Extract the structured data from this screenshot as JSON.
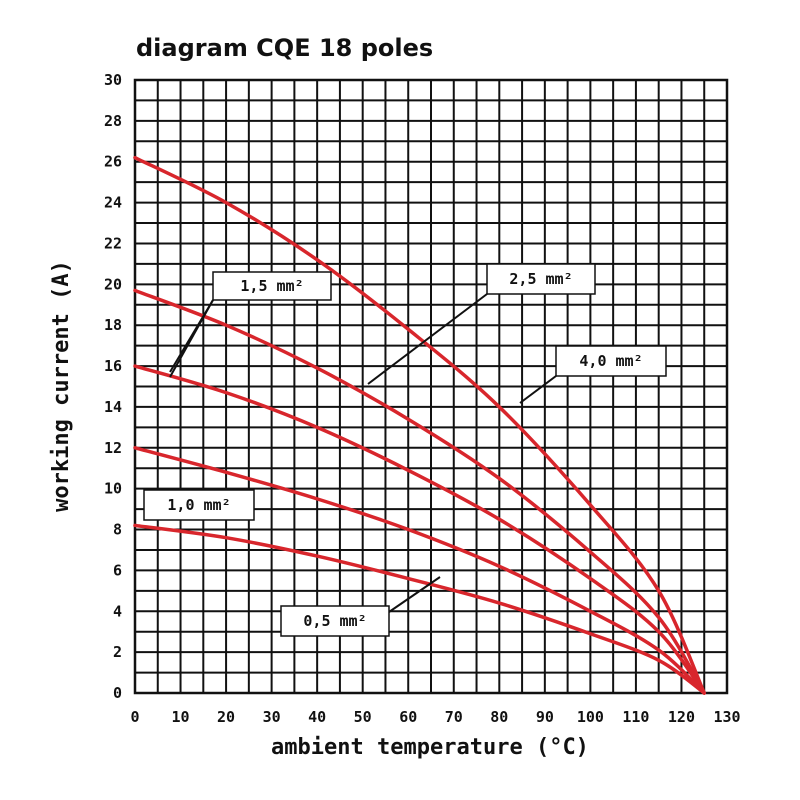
{
  "chart_data": {
    "type": "line",
    "title": "diagram CQE 18 poles",
    "xlabel": "ambient temperature (°C)",
    "ylabel": "working current (A)",
    "xlim": [
      0,
      130
    ],
    "ylim": [
      0,
      30
    ],
    "x_ticks": [
      0,
      10,
      20,
      30,
      40,
      50,
      60,
      70,
      80,
      90,
      100,
      110,
      120,
      130
    ],
    "y_ticks": [
      0,
      2,
      4,
      6,
      8,
      10,
      12,
      14,
      16,
      18,
      20,
      22,
      24,
      26,
      28,
      30
    ],
    "grid": true,
    "line_color": "#d8262c",
    "series": [
      {
        "name": "0,5 mm²",
        "x": [
          0,
          20,
          40,
          60,
          80,
          100,
          115,
          125
        ],
        "y": [
          8.2,
          7.6,
          6.7,
          5.6,
          4.4,
          2.9,
          1.6,
          0
        ]
      },
      {
        "name": "1,0 mm²",
        "x": [
          0,
          20,
          40,
          60,
          80,
          100,
          115,
          125
        ],
        "y": [
          12,
          10.8,
          9.5,
          8.0,
          6.2,
          4.0,
          2.1,
          0
        ]
      },
      {
        "name": "1,5 mm²",
        "x": [
          0,
          20,
          40,
          60,
          80,
          100,
          115,
          125
        ],
        "y": [
          16,
          14.7,
          13.0,
          10.9,
          8.5,
          5.6,
          3.0,
          0
        ]
      },
      {
        "name": "2,5 mm²",
        "x": [
          0,
          20,
          40,
          60,
          80,
          100,
          115,
          125
        ],
        "y": [
          19.7,
          18.0,
          15.9,
          13.4,
          10.5,
          6.9,
          3.7,
          0
        ]
      },
      {
        "name": "4,0 mm²",
        "x": [
          0,
          20,
          40,
          60,
          80,
          100,
          115,
          125
        ],
        "y": [
          26.2,
          24.0,
          21.2,
          17.8,
          14.0,
          9.2,
          5.0,
          0
        ]
      }
    ],
    "labels": [
      {
        "text": "1,5 mm²"
      },
      {
        "text": "2,5 mm²"
      },
      {
        "text": "4,0 mm²"
      },
      {
        "text": "1,0 mm²"
      },
      {
        "text": "0,5 mm²"
      }
    ]
  }
}
